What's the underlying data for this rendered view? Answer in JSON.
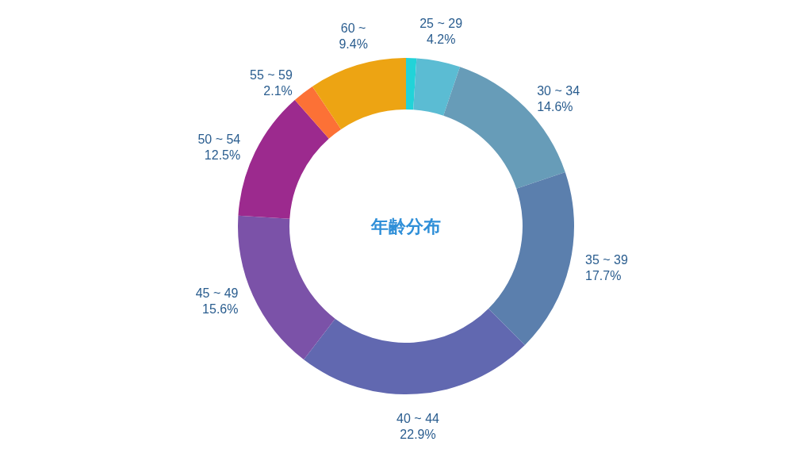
{
  "chart_data": {
    "type": "donut",
    "title": "年齢分布",
    "categories": [
      null,
      "25 ~ 29",
      "30 ~ 34",
      "35 ~ 39",
      "40 ~ 44",
      "45 ~ 49",
      "50 ~ 54",
      "55 ~ 59",
      "60 ~"
    ],
    "values": [
      1.0,
      4.2,
      14.6,
      17.7,
      22.9,
      15.6,
      12.5,
      2.1,
      9.4
    ],
    "value_labels": [
      null,
      "4.2%",
      "14.6%",
      "17.7%",
      "22.9%",
      "15.6%",
      "12.5%",
      "2.1%",
      "9.4%"
    ],
    "colors": [
      "#22d3d8",
      "#5bbcd3",
      "#679cb8",
      "#5b7fad",
      "#6168b0",
      "#7b52a8",
      "#9c2a8e",
      "#fc7136",
      "#eda413"
    ],
    "legend": false
  }
}
